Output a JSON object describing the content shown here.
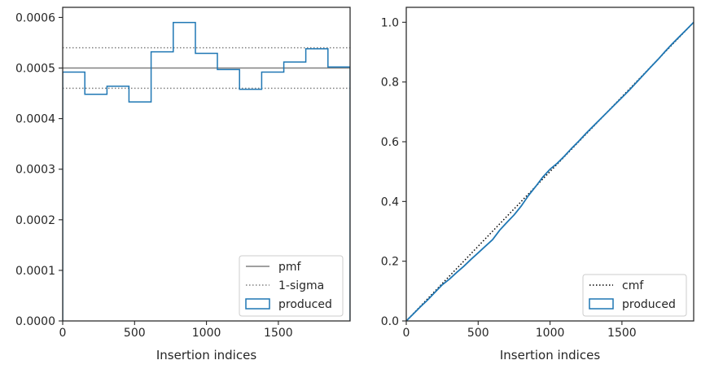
{
  "chart_data": [
    {
      "type": "line",
      "xlabel": "Insertion indices",
      "ylabel": "",
      "xlim": [
        0,
        1999
      ],
      "ylim": [
        0,
        0.00062
      ],
      "x_ticks": [
        0,
        500,
        1000,
        1500
      ],
      "x_tick_labels": [
        "0",
        "500",
        "1000",
        "1500"
      ],
      "y_ticks": [
        0,
        0.0001,
        0.0002,
        0.0003,
        0.0004,
        0.0005,
        0.0006
      ],
      "y_tick_labels": [
        "0.0000",
        "0.0001",
        "0.0002",
        "0.0003",
        "0.0004",
        "0.0005",
        "0.0006"
      ],
      "grid": false,
      "legend_position": "lower-right",
      "series": [
        {
          "name": "pmf",
          "style": "solid",
          "color": "#808080",
          "y": 0.0005
        },
        {
          "name": "1-sigma",
          "style": "dotted",
          "color": "#808080",
          "y": [
            0.00046,
            0.00054
          ]
        },
        {
          "name": "produced",
          "style": "step",
          "color": "#1f77b4",
          "bin_edges": [
            0,
            154,
            308,
            461,
            615,
            769,
            923,
            1076,
            1230,
            1384,
            1538,
            1691,
            1845,
            1999
          ],
          "values": [
            0.000492,
            0.000448,
            0.000464,
            0.000433,
            0.000532,
            0.00059,
            0.000529,
            0.000497,
            0.000458,
            0.000492,
            0.000512,
            0.000538,
            0.000502
          ]
        }
      ]
    },
    {
      "type": "line",
      "xlabel": "Insertion indices",
      "ylabel": "",
      "xlim": [
        0,
        1999
      ],
      "ylim": [
        0,
        1.05
      ],
      "x_ticks": [
        0,
        500,
        1000,
        1500
      ],
      "x_tick_labels": [
        "0",
        "500",
        "1000",
        "1500"
      ],
      "y_ticks": [
        0,
        0.2,
        0.4,
        0.6,
        0.8,
        1.0
      ],
      "y_tick_labels": [
        "0.0",
        "0.2",
        "0.4",
        "0.6",
        "0.8",
        "1.0"
      ],
      "grid": false,
      "legend_position": "lower-right",
      "series": [
        {
          "name": "cmf",
          "style": "dotted",
          "color": "#000000",
          "x": [
            0,
            1999
          ],
          "y": [
            0,
            1.0
          ]
        },
        {
          "name": "produced",
          "style": "step",
          "color": "#1f77b4",
          "x": [
            0,
            50,
            100,
            150,
            200,
            250,
            300,
            350,
            400,
            450,
            500,
            550,
            600,
            650,
            700,
            750,
            800,
            850,
            900,
            950,
            1000,
            1050,
            1100,
            1150,
            1200,
            1250,
            1300,
            1350,
            1400,
            1450,
            1500,
            1550,
            1600,
            1650,
            1700,
            1750,
            1800,
            1850,
            1900,
            1950,
            1999
          ],
          "y": [
            0,
            0.024,
            0.048,
            0.071,
            0.096,
            0.121,
            0.14,
            0.162,
            0.183,
            0.206,
            0.228,
            0.25,
            0.272,
            0.304,
            0.33,
            0.355,
            0.385,
            0.42,
            0.45,
            0.482,
            0.508,
            0.528,
            0.552,
            0.578,
            0.602,
            0.628,
            0.652,
            0.676,
            0.7,
            0.724,
            0.748,
            0.772,
            0.798,
            0.824,
            0.85,
            0.875,
            0.902,
            0.928,
            0.952,
            0.976,
            1.0
          ]
        }
      ]
    }
  ]
}
